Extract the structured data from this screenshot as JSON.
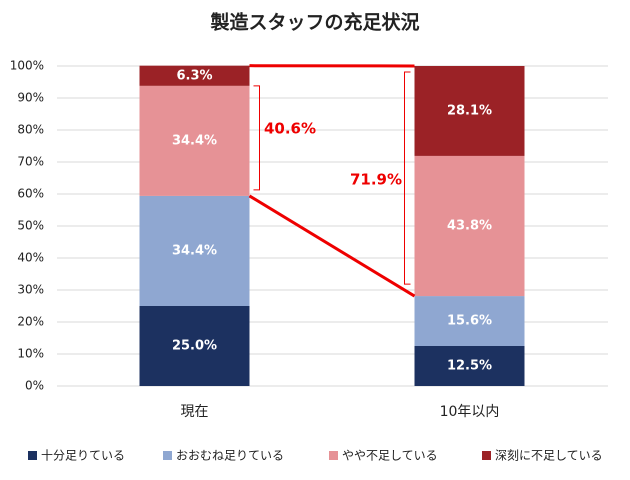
{
  "chart_data": {
    "type": "stacked_bar",
    "title": "製造スタッフの充足状況",
    "categories": [
      "現在",
      "10年以内"
    ],
    "series": [
      {
        "name": "十分足りている",
        "color": "#1c3160",
        "values": [
          25.0,
          12.5
        ],
        "value_labels": [
          "25.0%",
          "12.5%"
        ]
      },
      {
        "name": "おおむね足りている",
        "color": "#8fa7d1",
        "values": [
          34.4,
          15.6
        ],
        "value_labels": [
          "34.4%",
          "15.6%"
        ]
      },
      {
        "name": "やや不足している",
        "color": "#e69296",
        "values": [
          34.4,
          43.8
        ],
        "value_labels": [
          "34.4%",
          "43.8%"
        ]
      },
      {
        "name": "深刻に不足している",
        "color": "#9b2226",
        "values": [
          6.3,
          28.1
        ],
        "value_labels": [
          "6.3%",
          "28.1%"
        ]
      }
    ],
    "ylim": [
      0,
      100
    ],
    "yticks": [
      {
        "value": 0,
        "label": "0%"
      },
      {
        "value": 10,
        "label": "10%"
      },
      {
        "value": 20,
        "label": "20%"
      },
      {
        "value": 30,
        "label": "30%"
      },
      {
        "value": 40,
        "label": "40%"
      },
      {
        "value": 50,
        "label": "50%"
      },
      {
        "value": 60,
        "label": "60%"
      },
      {
        "value": 70,
        "label": "70%"
      },
      {
        "value": 80,
        "label": "80%"
      },
      {
        "value": 90,
        "label": "90%"
      },
      {
        "value": 100,
        "label": "100%"
      }
    ],
    "grid": true,
    "legend": "bottom",
    "annotations": [
      "40.6%",
      "71.9%"
    ],
    "annotation_color": "#ee0000"
  }
}
